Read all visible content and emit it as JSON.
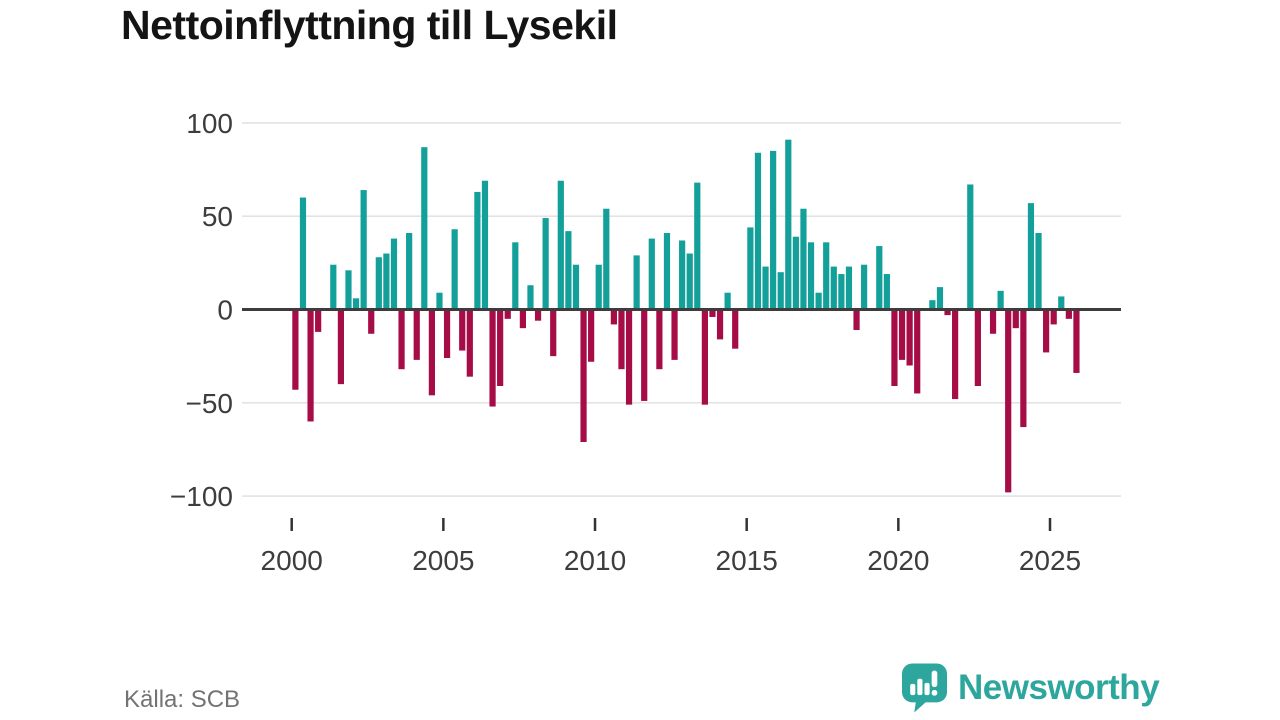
{
  "title": "Nettoinflyttning till Lysekil",
  "source_label": "Källa: SCB",
  "branding": {
    "wordmark": "Newsworthy",
    "icon_name": "newsworthy-speech-bubble-bar-chart-icon",
    "color": "#2da69e"
  },
  "colors": {
    "background": "#ffffff",
    "title": "#141414",
    "grid": "#e3e3e3",
    "axis": "#3c3c3c",
    "tick_text": "#3d3d3d",
    "tick_mark": "#333333",
    "source_text": "#737373"
  },
  "chart_data": {
    "type": "bar",
    "title": "Nettoinflyttning till Lysekil",
    "frequency": "quarterly",
    "xlabel": "",
    "ylabel": "",
    "ylim": [
      -110,
      107
    ],
    "yticks": [
      100,
      50,
      0,
      -50,
      -100
    ],
    "ytick_labels": [
      "100",
      "50",
      "0",
      "−50",
      "−100"
    ],
    "xticks": [
      2000,
      2005,
      2010,
      2015,
      2020,
      2025
    ],
    "xtick_labels": [
      "2000",
      "2005",
      "2010",
      "2015",
      "2020",
      "2025"
    ],
    "grid": true,
    "legend": false,
    "positive_color": "#14a09a",
    "negative_color": "#a60c46",
    "years": [
      {
        "year": 2000,
        "values": [
          -43,
          60,
          -60,
          -12
        ]
      },
      {
        "year": 2001,
        "values": [
          0,
          24,
          -40,
          21
        ]
      },
      {
        "year": 2002,
        "values": [
          6,
          64,
          -13,
          28
        ]
      },
      {
        "year": 2003,
        "values": [
          30,
          38,
          -32,
          41
        ]
      },
      {
        "year": 2004,
        "values": [
          -27,
          87,
          -46,
          9
        ]
      },
      {
        "year": 2005,
        "values": [
          -26,
          43,
          -22,
          -36
        ]
      },
      {
        "year": 2006,
        "values": [
          63,
          69,
          -52,
          -41
        ]
      },
      {
        "year": 2007,
        "values": [
          -5,
          36,
          -10,
          13
        ]
      },
      {
        "year": 2008,
        "values": [
          -6,
          49,
          -25,
          69
        ]
      },
      {
        "year": 2009,
        "values": [
          42,
          24,
          -71,
          -28
        ]
      },
      {
        "year": 2010,
        "values": [
          24,
          54,
          -8,
          -32
        ]
      },
      {
        "year": 2011,
        "values": [
          -51,
          29,
          -49,
          38
        ]
      },
      {
        "year": 2012,
        "values": [
          -32,
          41,
          -27,
          37
        ]
      },
      {
        "year": 2013,
        "values": [
          30,
          68,
          -51,
          -4
        ]
      },
      {
        "year": 2014,
        "values": [
          -16,
          9,
          -21,
          0
        ]
      },
      {
        "year": 2015,
        "values": [
          44,
          84,
          23,
          85
        ]
      },
      {
        "year": 2016,
        "values": [
          20,
          91,
          39,
          54
        ]
      },
      {
        "year": 2017,
        "values": [
          36,
          9,
          36,
          23
        ]
      },
      {
        "year": 2018,
        "values": [
          19,
          23,
          -11,
          24
        ]
      },
      {
        "year": 2019,
        "values": [
          0,
          34,
          19,
          -41
        ]
      },
      {
        "year": 2020,
        "values": [
          -27,
          -30,
          -45,
          0
        ]
      },
      {
        "year": 2021,
        "values": [
          5,
          12,
          -3,
          -48
        ]
      },
      {
        "year": 2022,
        "values": [
          0,
          67,
          -41,
          0
        ]
      },
      {
        "year": 2023,
        "values": [
          -13,
          10,
          -98,
          -10
        ]
      },
      {
        "year": 2024,
        "values": [
          -63,
          57,
          41,
          -23
        ]
      },
      {
        "year": 2025,
        "values": [
          -8,
          7,
          -5,
          -34
        ]
      }
    ]
  }
}
